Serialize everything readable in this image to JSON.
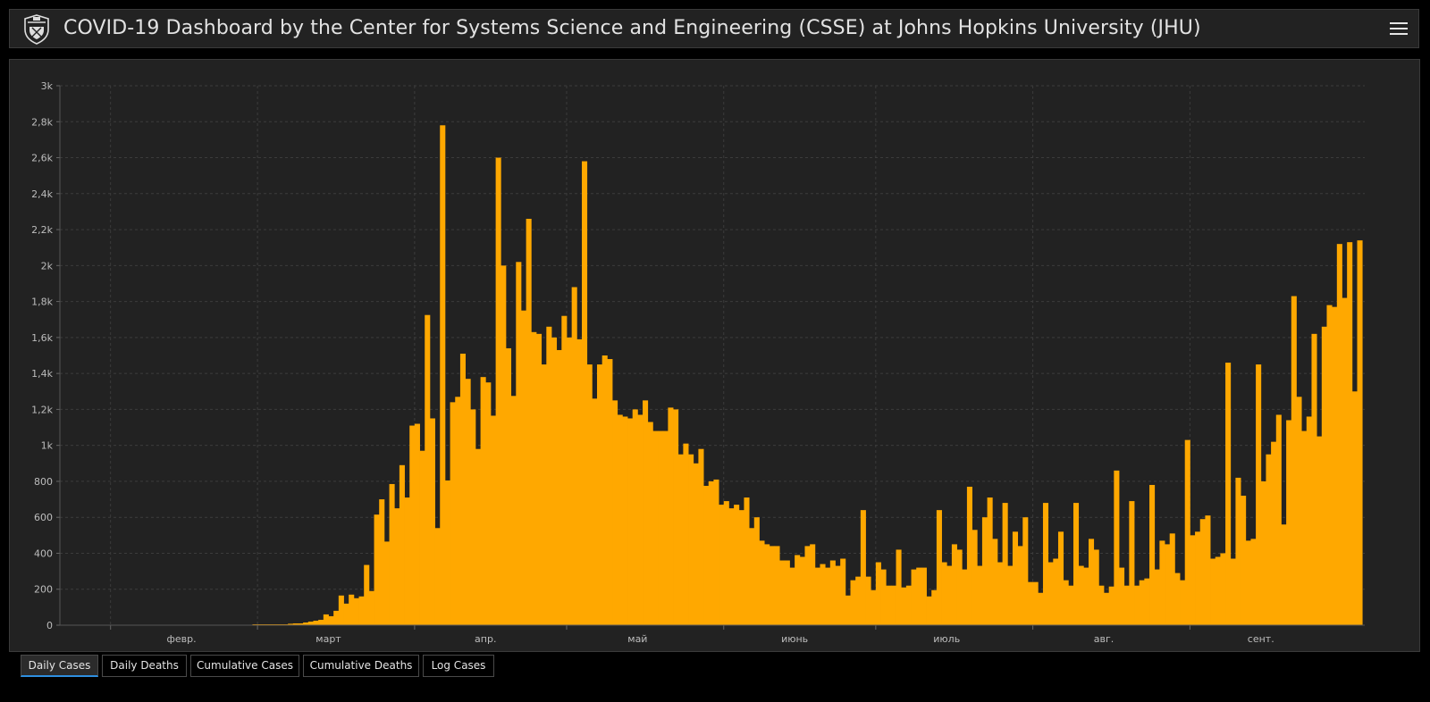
{
  "header": {
    "title": "COVID-19 Dashboard by the Center for Systems Science and Engineering (CSSE) at Johns Hopkins University (JHU)",
    "menu_icon": "hamburger-menu-icon",
    "logo_icon": "jhu-shield-logo-icon"
  },
  "tabs": [
    {
      "label": "Daily Cases",
      "active": true
    },
    {
      "label": "Daily Deaths",
      "active": false
    },
    {
      "label": "Cumulative Cases",
      "active": false
    },
    {
      "label": "Cumulative Deaths",
      "active": false
    },
    {
      "label": "Log Cases",
      "active": false
    }
  ],
  "colors": {
    "bar": "#ffa800",
    "background": "#222222",
    "grid": "#3c3c3c",
    "active_tab_underline": "#2e8fe0"
  },
  "chart_data": {
    "type": "bar",
    "title": "",
    "xlabel": "",
    "ylabel": "",
    "ylim": [
      0,
      3000
    ],
    "grid": true,
    "y_tick_labels": [
      "0",
      "200",
      "400",
      "600",
      "800",
      "1k",
      "1,2k",
      "1,4k",
      "1,6k",
      "1,8k",
      "2k",
      "2,2k",
      "2,4k",
      "2,6k",
      "2,8k",
      "3k"
    ],
    "x_month_labels": [
      "февр.",
      "март",
      "апр.",
      "май",
      "июнь",
      "июль",
      "авг.",
      "сент."
    ],
    "x_start_date": "2020-01-22",
    "series": [
      {
        "values": [
          0,
          0,
          0,
          0,
          0,
          0,
          0,
          0,
          0,
          0,
          0,
          0,
          0,
          0,
          0,
          0,
          0,
          0,
          0,
          0,
          0,
          0,
          0,
          0,
          0,
          0,
          0,
          0,
          0,
          0,
          0,
          0,
          0,
          0,
          0,
          0,
          0,
          0,
          5,
          5,
          5,
          5,
          5,
          5,
          5,
          8,
          10,
          10,
          15,
          20,
          25,
          30,
          60,
          50,
          80,
          165,
          120,
          170,
          150,
          160,
          335,
          190,
          615,
          700,
          465,
          785,
          650,
          890,
          710,
          1110,
          1120,
          970,
          1725,
          1150,
          540,
          2780,
          805,
          1240,
          1270,
          1510,
          1370,
          1200,
          980,
          1380,
          1350,
          1165,
          2600,
          2000,
          1540,
          1275,
          2020,
          1750,
          2260,
          1630,
          1620,
          1450,
          1660,
          1600,
          1530,
          1720,
          1600,
          1880,
          1590,
          2580,
          1450,
          1260,
          1450,
          1500,
          1480,
          1250,
          1170,
          1160,
          1150,
          1200,
          1170,
          1250,
          1130,
          1080,
          1080,
          1080,
          1210,
          1200,
          950,
          1010,
          950,
          900,
          980,
          775,
          800,
          810,
          670,
          690,
          650,
          670,
          640,
          710,
          540,
          600,
          470,
          450,
          440,
          440,
          360,
          360,
          320,
          390,
          380,
          440,
          450,
          320,
          340,
          320,
          360,
          330,
          370,
          165,
          250,
          270,
          640,
          270,
          195,
          350,
          310,
          220,
          220,
          420,
          210,
          220,
          310,
          320,
          320,
          160,
          195,
          640,
          350,
          330,
          450,
          420,
          310,
          770,
          530,
          330,
          600,
          710,
          480,
          350,
          680,
          330,
          520,
          440,
          600,
          240,
          240,
          180,
          680,
          350,
          370,
          520,
          250,
          220,
          680,
          330,
          320,
          480,
          420,
          220,
          180,
          215,
          860,
          320,
          220,
          690,
          220,
          250,
          260,
          780,
          310,
          470,
          450,
          510,
          290,
          250,
          1030,
          500,
          520,
          590,
          610,
          370,
          380,
          400,
          1460,
          370,
          820,
          720,
          470,
          480,
          1450,
          800,
          950,
          1020,
          1170,
          560,
          1140,
          1830,
          1270,
          1080,
          1160,
          1620,
          1050,
          1660,
          1780,
          1770,
          2120,
          1820,
          2130,
          1300,
          2140
        ]
      }
    ]
  }
}
